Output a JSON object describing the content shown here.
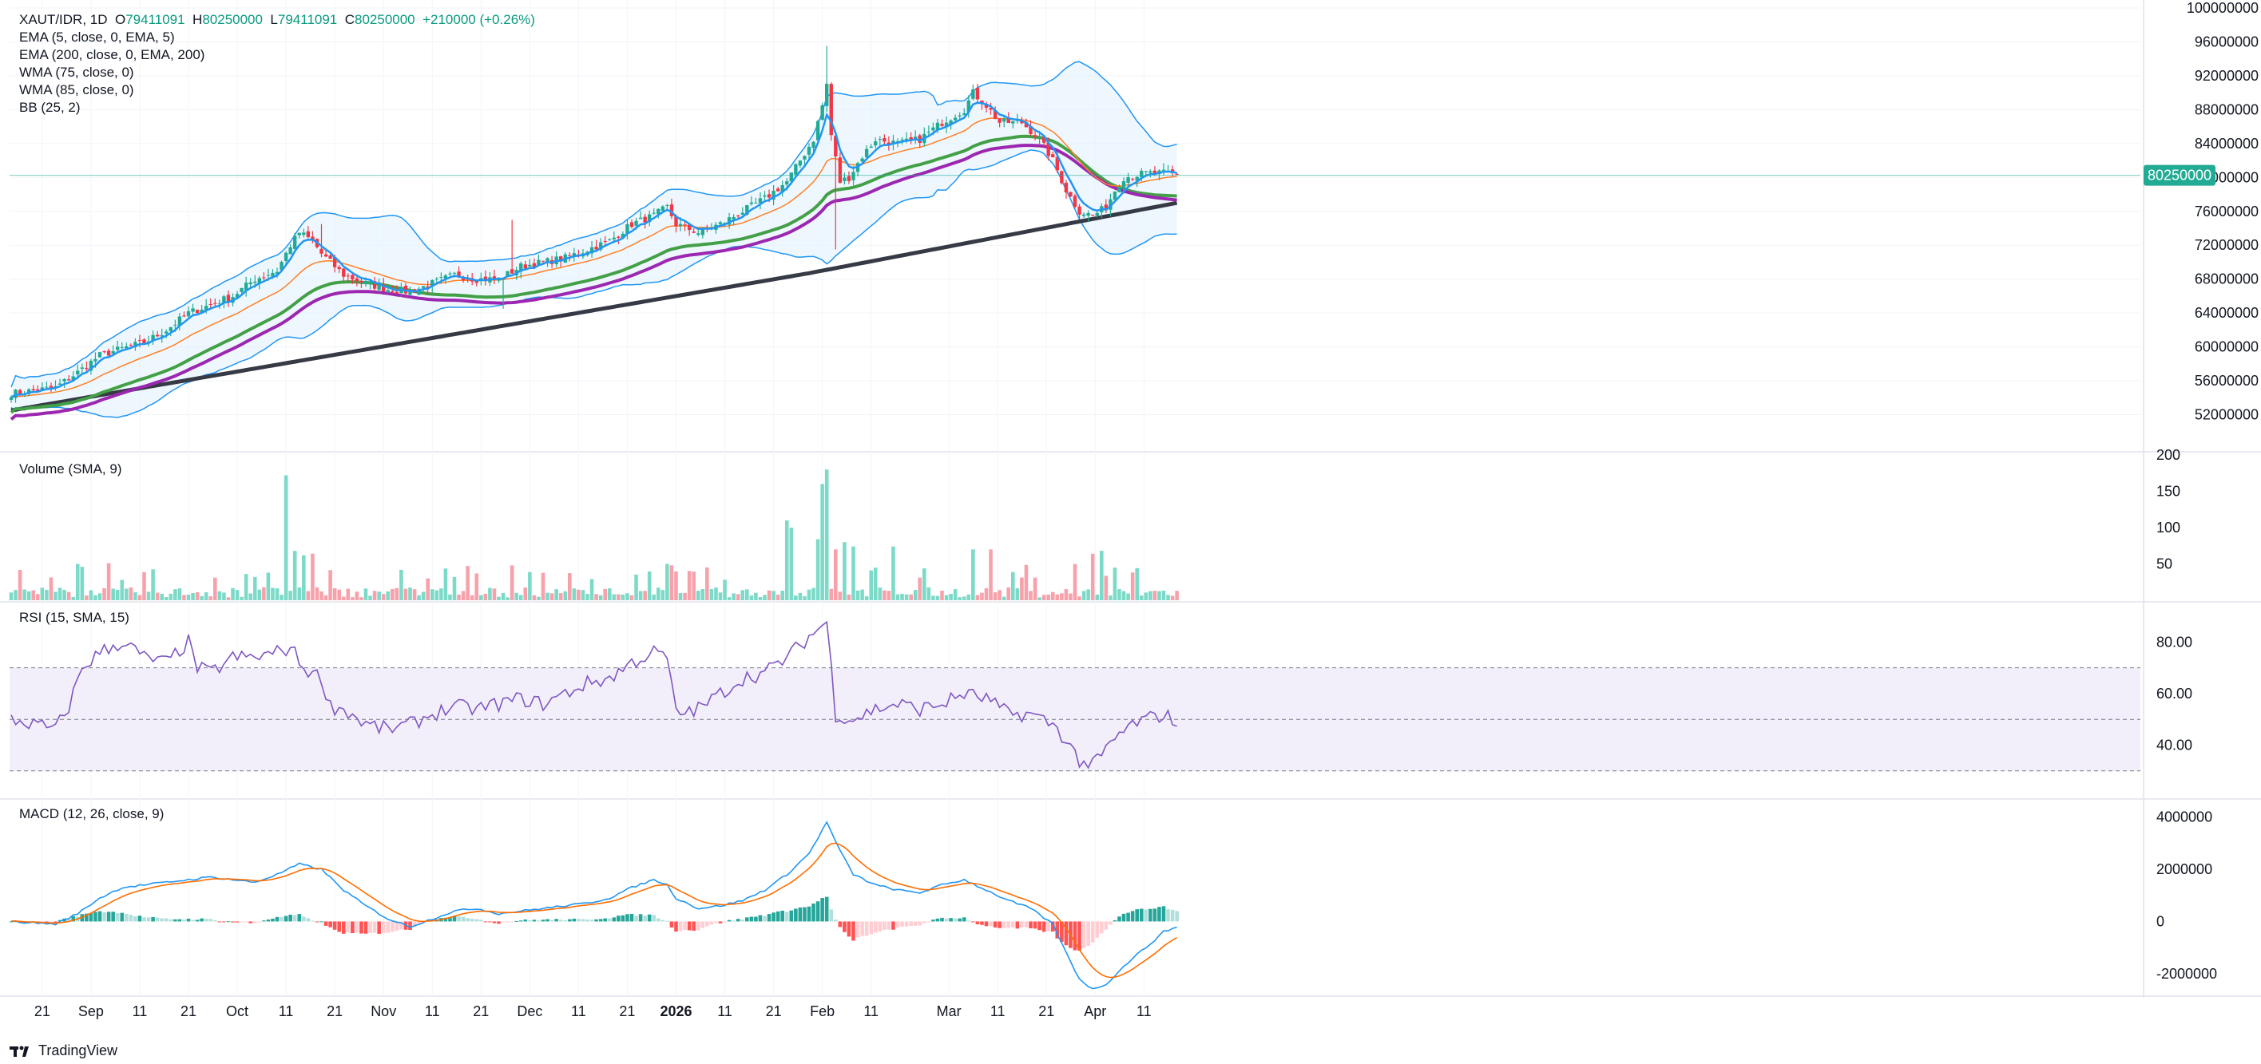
{
  "legend": {
    "symbol": "XAUT/IDR, 1D",
    "open_label": "O",
    "open": "79411091",
    "high_label": "H",
    "high": "80250000",
    "low_label": "L",
    "low": "79411091",
    "close_label": "C",
    "close": "80250000",
    "change": "+210000 (+0.26%)",
    "indicators": [
      "EMA (5, close, 0, EMA, 5)",
      "EMA (200, close, 0, EMA, 200)",
      "WMA (75, close, 0)",
      "WMA (85, close, 0)",
      "BB (25, 2)"
    ]
  },
  "panes": {
    "volume_label": "Volume (SMA, 9)",
    "rsi_label": "RSI (15, SMA, 15)",
    "macd_label": "MACD (12, 26, close, 9)"
  },
  "brand": {
    "name": "TradingView",
    "logo_icon": "tradingview-logo-icon"
  },
  "colors": {
    "up": "#22ab94",
    "down": "#f23645",
    "vol_up": "#7ddac8",
    "vol_down": "#f7a1ab",
    "ema5": "#2196f3",
    "ema200": "#363a45",
    "wma75": "#43a047",
    "wma85": "#9c27b0",
    "bb": "#2196f3",
    "bb_fill": "#e3f2fd",
    "ema_orange": "#ff7f27",
    "rsi": "#7e57c2",
    "rsi_band": "#f2effa",
    "macd": "#2196f3",
    "signal": "#ff6d00"
  },
  "chart_data": {
    "type": "candlestick",
    "title": "XAUT/IDR, 1D",
    "x_ticks": [
      "21",
      "Sep",
      "11",
      "21",
      "Oct",
      "11",
      "21",
      "Nov",
      "11",
      "21",
      "Dec",
      "11",
      "21",
      "2026",
      "11",
      "21",
      "Feb",
      "11",
      "Mar",
      "11",
      "21",
      "Apr",
      "11"
    ],
    "price_axis": {
      "ylim": [
        48000000,
        100000000
      ],
      "ticks": [
        "100000000",
        "96000000",
        "92000000",
        "88000000",
        "84000000",
        "80000000",
        "76000000",
        "72000000",
        "68000000",
        "64000000",
        "60000000",
        "56000000",
        "52000000"
      ],
      "last_price": "80250000"
    },
    "price_anchors": [
      [
        0,
        54.5
      ],
      [
        10,
        55.2
      ],
      [
        15,
        57.0
      ],
      [
        20,
        59.0
      ],
      [
        25,
        59.8
      ],
      [
        30,
        60.5
      ],
      [
        35,
        62.0
      ],
      [
        40,
        64.0
      ],
      [
        45,
        65.0
      ],
      [
        50,
        66.0
      ],
      [
        55,
        68.0
      ],
      [
        60,
        69.0
      ],
      [
        63,
        72.0
      ],
      [
        65,
        73.5
      ],
      [
        68,
        72.5
      ],
      [
        70,
        71.0
      ],
      [
        72,
        70.0
      ],
      [
        75,
        68.5
      ],
      [
        80,
        67.5
      ],
      [
        85,
        66.8
      ],
      [
        90,
        66.5
      ],
      [
        95,
        67.5
      ],
      [
        100,
        68.5
      ],
      [
        105,
        68.0
      ],
      [
        110,
        68.0
      ],
      [
        115,
        69.5
      ],
      [
        120,
        70.0
      ],
      [
        125,
        70.5
      ],
      [
        130,
        71.5
      ],
      [
        135,
        72.5
      ],
      [
        140,
        74.5
      ],
      [
        145,
        75.5
      ],
      [
        148,
        76.5
      ],
      [
        150,
        74.5
      ],
      [
        155,
        73.5
      ],
      [
        160,
        74.5
      ],
      [
        165,
        76.0
      ],
      [
        170,
        77.5
      ],
      [
        175,
        79.5
      ],
      [
        178,
        82.0
      ],
      [
        181,
        84.5
      ],
      [
        183,
        88.5
      ],
      [
        184,
        91.0
      ],
      [
        185,
        85.0
      ],
      [
        187,
        79.5
      ],
      [
        189,
        80.0
      ],
      [
        192,
        82.5
      ],
      [
        195,
        84.5
      ],
      [
        200,
        84.0
      ],
      [
        205,
        84.5
      ],
      [
        210,
        86.5
      ],
      [
        215,
        88.0
      ],
      [
        217,
        90.0
      ],
      [
        220,
        88.5
      ],
      [
        223,
        86.5
      ],
      [
        228,
        86.5
      ],
      [
        232,
        84.5
      ],
      [
        235,
        82.0
      ],
      [
        238,
        78.5
      ],
      [
        241,
        76.0
      ],
      [
        244,
        75.5
      ],
      [
        247,
        76.5
      ],
      [
        249,
        78.5
      ],
      [
        251,
        80.0
      ],
      [
        256,
        80.5
      ],
      [
        261,
        80.5
      ],
      [
        263,
        80.25
      ]
    ],
    "volume_axis": {
      "ylim": [
        0,
        200
      ],
      "ticks": [
        "200",
        "150",
        "100",
        "50"
      ]
    },
    "rsi_axis": {
      "ylim": [
        20,
        95
      ],
      "ticks": [
        "80.00",
        "60.00",
        "40.00"
      ],
      "upper_band": 70,
      "lower_band": 30
    },
    "rsi_anchors": [
      [
        0,
        50
      ],
      [
        5,
        48
      ],
      [
        10,
        46
      ],
      [
        13,
        55
      ],
      [
        16,
        70
      ],
      [
        20,
        76
      ],
      [
        25,
        80
      ],
      [
        27,
        78
      ],
      [
        30,
        74
      ],
      [
        35,
        72
      ],
      [
        40,
        80
      ],
      [
        42,
        70
      ],
      [
        45,
        68
      ],
      [
        50,
        74
      ],
      [
        55,
        74
      ],
      [
        60,
        76
      ],
      [
        63,
        78
      ],
      [
        66,
        70
      ],
      [
        70,
        66
      ],
      [
        72,
        55
      ],
      [
        75,
        54
      ],
      [
        80,
        48
      ],
      [
        85,
        46
      ],
      [
        90,
        48
      ],
      [
        95,
        52
      ],
      [
        100,
        55
      ],
      [
        105,
        54
      ],
      [
        110,
        56
      ],
      [
        115,
        58
      ],
      [
        120,
        56
      ],
      [
        125,
        60
      ],
      [
        130,
        64
      ],
      [
        135,
        66
      ],
      [
        140,
        72
      ],
      [
        145,
        76
      ],
      [
        148,
        74
      ],
      [
        150,
        52
      ],
      [
        155,
        54
      ],
      [
        160,
        60
      ],
      [
        165,
        66
      ],
      [
        170,
        68
      ],
      [
        175,
        74
      ],
      [
        180,
        82
      ],
      [
        184,
        88
      ],
      [
        186,
        52
      ],
      [
        190,
        50
      ],
      [
        195,
        54
      ],
      [
        200,
        56
      ],
      [
        205,
        54
      ],
      [
        210,
        56
      ],
      [
        215,
        60
      ],
      [
        220,
        58
      ],
      [
        225,
        52
      ],
      [
        230,
        52
      ],
      [
        235,
        48
      ],
      [
        238,
        42
      ],
      [
        241,
        34
      ],
      [
        244,
        32
      ],
      [
        247,
        38
      ],
      [
        250,
        44
      ],
      [
        253,
        48
      ],
      [
        256,
        50
      ],
      [
        260,
        52
      ],
      [
        263,
        49
      ]
    ],
    "macd_axis": {
      "ylim": [
        -2800000,
        4600000
      ],
      "ticks": [
        "4000000",
        "2000000",
        "0",
        "-2000000"
      ]
    },
    "macd_anchors": [
      [
        0,
        0
      ],
      [
        10,
        -100000
      ],
      [
        15,
        300000
      ],
      [
        20,
        900000
      ],
      [
        25,
        1300000
      ],
      [
        30,
        1400000
      ],
      [
        35,
        1500000
      ],
      [
        40,
        1600000
      ],
      [
        45,
        1700000
      ],
      [
        50,
        1600000
      ],
      [
        55,
        1500000
      ],
      [
        60,
        1800000
      ],
      [
        65,
        2200000
      ],
      [
        70,
        2000000
      ],
      [
        75,
        1200000
      ],
      [
        80,
        600000
      ],
      [
        85,
        100000
      ],
      [
        90,
        -200000
      ],
      [
        95,
        100000
      ],
      [
        100,
        400000
      ],
      [
        105,
        500000
      ],
      [
        110,
        300000
      ],
      [
        115,
        400000
      ],
      [
        120,
        500000
      ],
      [
        125,
        600000
      ],
      [
        130,
        700000
      ],
      [
        135,
        900000
      ],
      [
        140,
        1300000
      ],
      [
        145,
        1600000
      ],
      [
        148,
        1400000
      ],
      [
        150,
        900000
      ],
      [
        155,
        500000
      ],
      [
        160,
        600000
      ],
      [
        165,
        800000
      ],
      [
        170,
        1200000
      ],
      [
        175,
        1800000
      ],
      [
        180,
        2600000
      ],
      [
        184,
        3800000
      ],
      [
        187,
        2700000
      ],
      [
        190,
        1800000
      ],
      [
        195,
        1400000
      ],
      [
        200,
        1200000
      ],
      [
        205,
        1100000
      ],
      [
        210,
        1400000
      ],
      [
        215,
        1600000
      ],
      [
        220,
        1200000
      ],
      [
        225,
        800000
      ],
      [
        230,
        500000
      ],
      [
        235,
        -100000
      ],
      [
        238,
        -1200000
      ],
      [
        241,
        -2200000
      ],
      [
        244,
        -2600000
      ],
      [
        247,
        -2400000
      ],
      [
        250,
        -1900000
      ],
      [
        253,
        -1400000
      ],
      [
        256,
        -1000000
      ],
      [
        260,
        -400000
      ],
      [
        263,
        -200000
      ]
    ]
  }
}
